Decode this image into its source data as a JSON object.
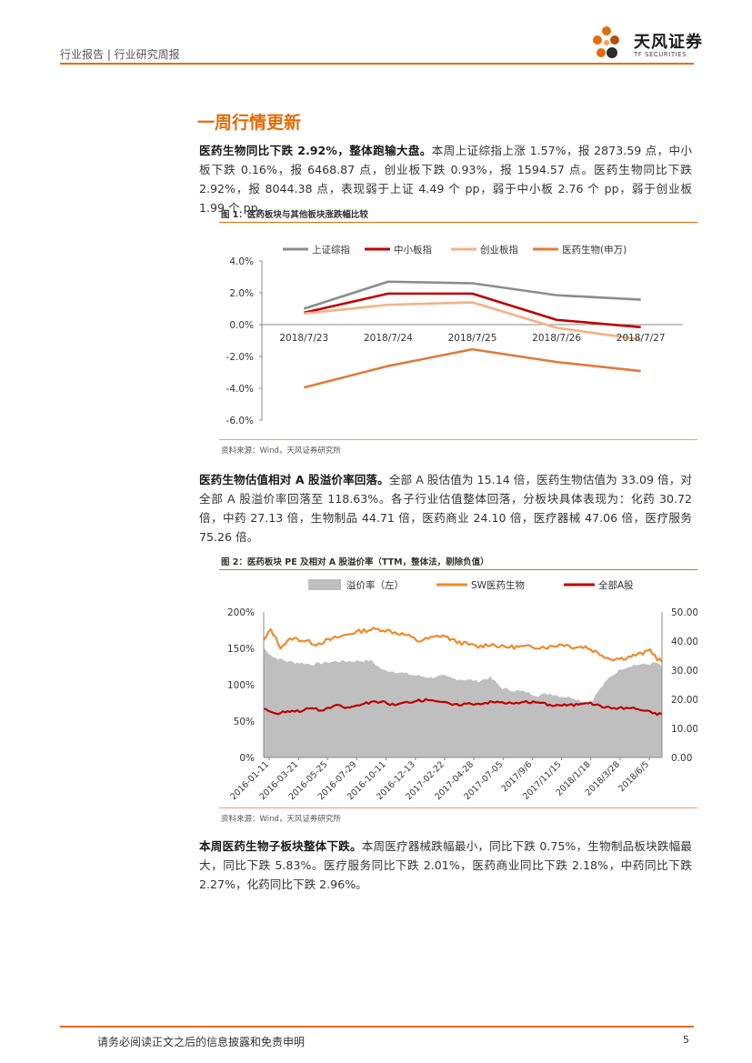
{
  "header": {
    "left_text": "行业报告 | 行业研究周报",
    "logo_cn": "天风证券",
    "logo_en": "TF SECURITIES"
  },
  "section": {
    "title": "一周行情更新"
  },
  "para1": {
    "bold": "医药生物同比下跌 2.92%，整体跑输大盘。",
    "text": "本周上证综指上涨 1.57%，报 2873.59 点，中小板下跌 0.16%，报 6468.87 点，创业板下跌 0.93%，报 1594.57 点。医药生物同比下跌 2.92%，报 8044.38 点，表现弱于上证 4.49 个 pp，弱于中小板 2.76 个 pp，弱于创业板 1.99 个 pp。"
  },
  "fig1": {
    "title": "图 1：医药板块与其他板块涨跌幅比较",
    "source": "资料来源：Wind，天风证券研究所"
  },
  "para2": {
    "bold": "医药生物估值相对 A 股溢价率回落。",
    "text": "全部 A 股估值为 15.14 倍，医药生物估值为 33.09 倍，对全部 A 股溢价率回落至 118.63%。各子行业估值整体回落，分板块具体表现为：化药 30.72 倍，中药 27.13 倍，生物制品 44.71 倍，医药商业 24.10 倍，医疗器械 47.06 倍，医疗服务 75.26 倍。"
  },
  "fig2": {
    "title": "图 2：医药板块 PE 及相对 A 股溢价率（TTM，整体法，剔除负值）",
    "source": "资料来源：Wind，天风证券研究所"
  },
  "para3": {
    "bold": "本周医药生物子板块整体下跌。",
    "text": "本周医疗器械跌幅最小，同比下跌 0.75%，生物制品板块跌幅最大，同比下跌 5.83%。医疗服务同比下跌 2.01%，医药商业同比下跌 2.18%，中药同比下跌 2.27%，化药同比下跌 2.96%。"
  },
  "footer": {
    "disclaimer": "请务必阅读正文之后的信息披露和免责申明",
    "page": "5"
  },
  "colors": {
    "accent": "#e36c0a"
  },
  "chart_data": [
    {
      "type": "line",
      "categories": [
        "2018/7/23",
        "2018/7/24",
        "2018/7/25",
        "2018/7/26",
        "2018/7/27"
      ],
      "series": [
        {
          "name": "上证综指",
          "color": "#8c8c8c",
          "values": [
            1.0,
            2.7,
            2.6,
            1.85,
            1.57
          ]
        },
        {
          "name": "中小板指",
          "color": "#c00000",
          "values": [
            0.75,
            1.95,
            1.95,
            0.3,
            -0.16
          ]
        },
        {
          "name": "创业板指",
          "color": "#f4b183",
          "values": [
            0.7,
            1.25,
            1.4,
            -0.2,
            -0.93
          ]
        },
        {
          "name": "医药生物(申万)",
          "color": "#e07b39",
          "values": [
            -3.95,
            -2.6,
            -1.55,
            -2.35,
            -2.92
          ]
        }
      ],
      "yticks": [
        "4.0%",
        "2.0%",
        "0.0%",
        "-2.0%",
        "-4.0%",
        "-6.0%"
      ],
      "ylim": [
        -6,
        4
      ],
      "legend": "top"
    },
    {
      "type": "area+line",
      "xticks": [
        "2016-01-11",
        "2016-03-21",
        "2016-05-25",
        "2016-07-29",
        "2016-10-11",
        "2016-12-13",
        "2017-02-22",
        "2017-04-28",
        "2017-07-05",
        "2017/9/6",
        "2017/11/15",
        "2018/1/18",
        "2018/3/28",
        "2018/6/5"
      ],
      "left_axis": {
        "label": "溢价率（左）",
        "ticks": [
          "200%",
          "150%",
          "100%",
          "50%",
          "0%"
        ],
        "ylim": [
          0,
          200
        ]
      },
      "right_axis": {
        "ticks": [
          "50.00",
          "40.00",
          "30.00",
          "20.00",
          "10.00",
          "0.00"
        ],
        "ylim": [
          0,
          50
        ]
      },
      "series": [
        {
          "name": "溢价率（左）",
          "axis": "left",
          "color": "#bfbfbf",
          "anchors": [
            [
              0,
              150
            ],
            [
              4,
              138
            ],
            [
              10,
              132
            ],
            [
              20,
              128
            ],
            [
              30,
              132
            ],
            [
              45,
              133
            ],
            [
              50,
              120
            ],
            [
              55,
              118
            ],
            [
              60,
              115
            ],
            [
              65,
              112
            ],
            [
              70,
              110
            ],
            [
              75,
              112
            ],
            [
              80,
              108
            ],
            [
              85,
              107
            ],
            [
              90,
              105
            ],
            [
              95,
              110
            ],
            [
              100,
              95
            ],
            [
              105,
              92
            ],
            [
              110,
              90
            ],
            [
              115,
              85
            ],
            [
              120,
              88
            ],
            [
              125,
              84
            ],
            [
              130,
              82
            ],
            [
              133,
              78
            ],
            [
              137,
              75
            ],
            [
              140,
              90
            ],
            [
              145,
              110
            ],
            [
              150,
              122
            ],
            [
              155,
              127
            ],
            [
              160,
              128
            ],
            [
              165,
              130
            ],
            [
              167,
              123
            ]
          ]
        },
        {
          "name": "SW医药生物",
          "axis": "right",
          "color": "#f08a2b",
          "anchors": [
            [
              0,
              40
            ],
            [
              3,
              44
            ],
            [
              7,
              38
            ],
            [
              12,
              41
            ],
            [
              18,
              40
            ],
            [
              22,
              39
            ],
            [
              30,
              41
            ],
            [
              38,
              43
            ],
            [
              45,
              44
            ],
            [
              50,
              44
            ],
            [
              55,
              43
            ],
            [
              60,
              42
            ],
            [
              65,
              40
            ],
            [
              70,
              41
            ],
            [
              75,
              42
            ],
            [
              80,
              40
            ],
            [
              85,
              39
            ],
            [
              90,
              38
            ],
            [
              95,
              39
            ],
            [
              100,
              38
            ],
            [
              110,
              38
            ],
            [
              120,
              38
            ],
            [
              125,
              39
            ],
            [
              130,
              38
            ],
            [
              135,
              38
            ],
            [
              140,
              36
            ],
            [
              145,
              34
            ],
            [
              150,
              34
            ],
            [
              155,
              35
            ],
            [
              160,
              36
            ],
            [
              162,
              37
            ],
            [
              165,
              34
            ],
            [
              167,
              33
            ]
          ]
        },
        {
          "name": "全部A股",
          "axis": "right",
          "color": "#c00000",
          "anchors": [
            [
              0,
              17
            ],
            [
              5,
              15
            ],
            [
              10,
              16
            ],
            [
              15,
              16
            ],
            [
              20,
              17
            ],
            [
              25,
              16
            ],
            [
              30,
              18
            ],
            [
              35,
              17
            ],
            [
              40,
              18
            ],
            [
              45,
              19
            ],
            [
              50,
              19
            ],
            [
              55,
              18
            ],
            [
              60,
              19
            ],
            [
              65,
              19.5
            ],
            [
              70,
              20
            ],
            [
              75,
              19
            ],
            [
              80,
              18
            ],
            [
              85,
              18.5
            ],
            [
              90,
              18.5
            ],
            [
              95,
              19
            ],
            [
              100,
              19
            ],
            [
              105,
              18.5
            ],
            [
              110,
              19
            ],
            [
              115,
              19
            ],
            [
              120,
              18
            ],
            [
              125,
              18
            ],
            [
              130,
              18
            ],
            [
              135,
              19
            ],
            [
              140,
              18
            ],
            [
              145,
              17
            ],
            [
              150,
              17
            ],
            [
              155,
              17
            ],
            [
              160,
              16
            ],
            [
              165,
              15
            ],
            [
              167,
              15
            ]
          ]
        }
      ],
      "legend": "top"
    }
  ]
}
